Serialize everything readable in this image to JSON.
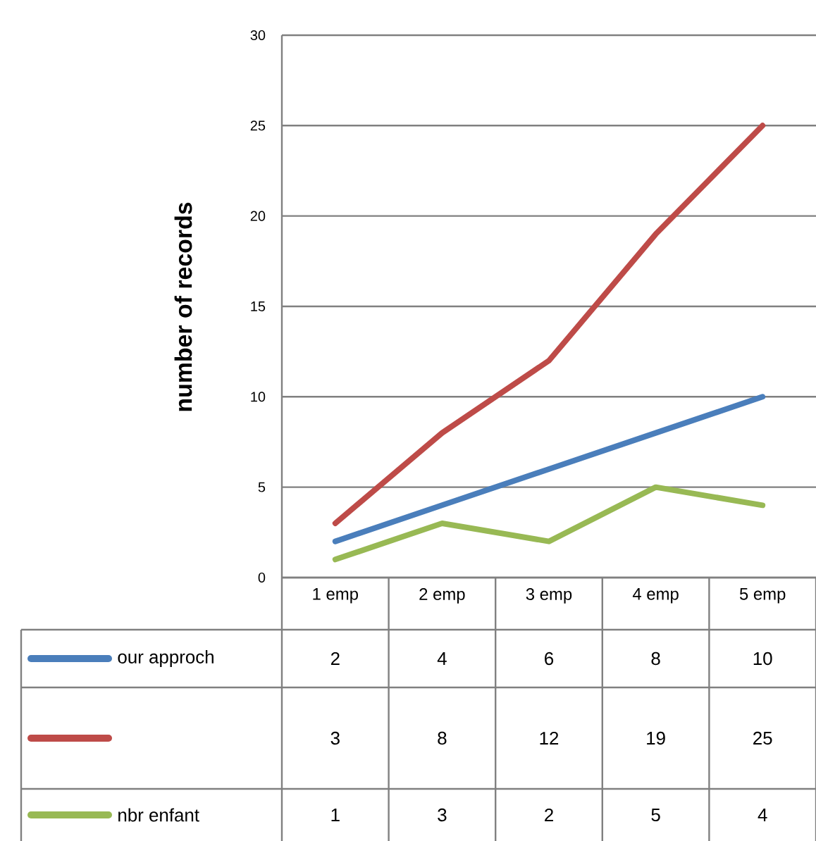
{
  "chart_data": {
    "type": "line",
    "ylabel": "number of records",
    "categories": [
      "1 emp",
      "2 emp",
      "3 emp",
      "4 emp",
      "5 emp"
    ],
    "series": [
      {
        "name": "our approch",
        "color": "#4a7ebb",
        "values": [
          2,
          4,
          6,
          8,
          10
        ]
      },
      {
        "color": "#be4b48",
        "values": [
          3,
          8,
          12,
          19,
          25
        ]
      },
      {
        "name": "nbr enfant",
        "color": "#98b954",
        "values": [
          1,
          3,
          2,
          5,
          4
        ]
      }
    ],
    "ylim": [
      0,
      30
    ],
    "yticks": [
      0,
      5,
      10,
      15,
      20,
      25,
      30
    ],
    "grid": "y",
    "legend": "bottom",
    "data_labels": true
  }
}
